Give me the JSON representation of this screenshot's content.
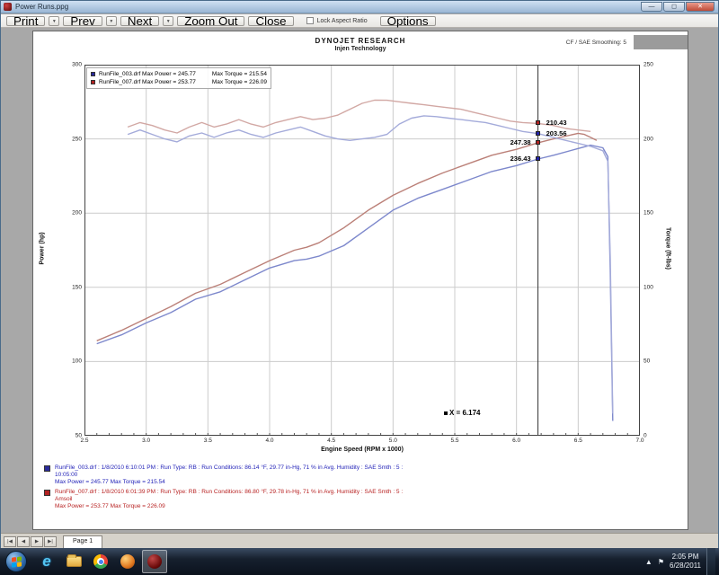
{
  "window": {
    "title": "Power Runs.ppg",
    "minimize": "—",
    "maximize": "◻",
    "close": "✕"
  },
  "toolbar": {
    "items": [
      {
        "label": "Print"
      },
      {
        "label": "Prev"
      },
      {
        "label": "Next"
      },
      {
        "label": "Zoom Out"
      },
      {
        "label": "Close"
      }
    ],
    "lock_aspect_label": "Lock Aspect Ratio",
    "options_label": "Options"
  },
  "page": {
    "header_title": "DYNOJET RESEARCH",
    "header_subtitle": "Injen Technology",
    "header_right": "CF / SAE   Smoothing: 5"
  },
  "legend": [
    {
      "color": "#2a2a9a",
      "left": "RunFile_003.drf Max Power = 245.77",
      "right": "Max Torque = 215.54"
    },
    {
      "color": "#b22222",
      "left": "RunFile_007.drf Max Power = 253.77",
      "right": "Max Torque = 226.09"
    }
  ],
  "cursor": {
    "label": "X = 6.174",
    "readouts": [
      {
        "label": "247.38",
        "value": 247.38,
        "axis": "left",
        "side": "left",
        "color": "#b22222"
      },
      {
        "label": "236.43",
        "value": 236.43,
        "axis": "left",
        "side": "left",
        "color": "#2222aa"
      },
      {
        "label": "210.43",
        "value": 210.43,
        "axis": "right",
        "side": "right",
        "color": "#b22222"
      },
      {
        "label": "203.56",
        "value": 203.56,
        "axis": "right",
        "side": "right",
        "color": "#2222aa"
      }
    ]
  },
  "chart_data": {
    "type": "line",
    "title": "DYNOJET RESEARCH — Injen Technology",
    "xlabel": "Engine Speed (RPM x 1000)",
    "ylabel_left": "Power (hp)",
    "ylabel_right": "Torque (ft-lbs)",
    "xlim": [
      2.5,
      7.0
    ],
    "x_tick_step": 0.5,
    "ylim_left": [
      50,
      300
    ],
    "ylim_right": [
      0,
      250
    ],
    "y_tick_step": 50,
    "grid": true,
    "cursor_x": 6.174,
    "series": [
      {
        "name": "RunFile_003.drf Power",
        "axis": "left",
        "color": "#7d88cc",
        "points": [
          [
            2.6,
            112
          ],
          [
            2.8,
            118
          ],
          [
            3.0,
            126
          ],
          [
            3.2,
            133
          ],
          [
            3.4,
            142
          ],
          [
            3.6,
            147
          ],
          [
            3.8,
            155
          ],
          [
            4.0,
            163
          ],
          [
            4.2,
            168
          ],
          [
            4.3,
            169
          ],
          [
            4.4,
            171
          ],
          [
            4.6,
            178
          ],
          [
            4.8,
            190
          ],
          [
            5.0,
            202
          ],
          [
            5.2,
            210
          ],
          [
            5.4,
            216
          ],
          [
            5.6,
            222
          ],
          [
            5.8,
            228
          ],
          [
            6.0,
            232
          ],
          [
            6.174,
            236.43
          ],
          [
            6.3,
            239
          ],
          [
            6.5,
            243.5
          ],
          [
            6.6,
            245.77
          ],
          [
            6.7,
            244
          ],
          [
            6.74,
            238
          ],
          [
            6.76,
            160
          ],
          [
            6.78,
            60
          ]
        ]
      },
      {
        "name": "RunFile_007.drf Power",
        "axis": "left",
        "color": "#bb8078",
        "points": [
          [
            2.6,
            114
          ],
          [
            2.8,
            121
          ],
          [
            3.0,
            129
          ],
          [
            3.2,
            137
          ],
          [
            3.4,
            146
          ],
          [
            3.6,
            152
          ],
          [
            3.8,
            160
          ],
          [
            4.0,
            168
          ],
          [
            4.2,
            175
          ],
          [
            4.3,
            177
          ],
          [
            4.4,
            180
          ],
          [
            4.6,
            190
          ],
          [
            4.8,
            202
          ],
          [
            5.0,
            212
          ],
          [
            5.2,
            220
          ],
          [
            5.4,
            227
          ],
          [
            5.6,
            233
          ],
          [
            5.8,
            239
          ],
          [
            6.0,
            243
          ],
          [
            6.174,
            247.38
          ],
          [
            6.3,
            250
          ],
          [
            6.5,
            253.77
          ],
          [
            6.55,
            253
          ],
          [
            6.6,
            251
          ],
          [
            6.65,
            249
          ]
        ]
      },
      {
        "name": "RunFile_003.drf Torque",
        "axis": "right",
        "color": "#a4abda",
        "points": [
          [
            2.85,
            203
          ],
          [
            2.95,
            206
          ],
          [
            3.05,
            203
          ],
          [
            3.15,
            200
          ],
          [
            3.25,
            198
          ],
          [
            3.35,
            202
          ],
          [
            3.45,
            204
          ],
          [
            3.55,
            201
          ],
          [
            3.65,
            204
          ],
          [
            3.75,
            206
          ],
          [
            3.85,
            203
          ],
          [
            3.95,
            201
          ],
          [
            4.05,
            204
          ],
          [
            4.15,
            206
          ],
          [
            4.25,
            208
          ],
          [
            4.35,
            205
          ],
          [
            4.45,
            202
          ],
          [
            4.55,
            200
          ],
          [
            4.65,
            199
          ],
          [
            4.75,
            200
          ],
          [
            4.85,
            201
          ],
          [
            4.95,
            203
          ],
          [
            5.05,
            210
          ],
          [
            5.15,
            214
          ],
          [
            5.25,
            215.54
          ],
          [
            5.35,
            215
          ],
          [
            5.45,
            214
          ],
          [
            5.55,
            213
          ],
          [
            5.65,
            212
          ],
          [
            5.75,
            211
          ],
          [
            5.85,
            209
          ],
          [
            5.95,
            207
          ],
          [
            6.05,
            205
          ],
          [
            6.174,
            203.56
          ],
          [
            6.3,
            201
          ],
          [
            6.4,
            199
          ],
          [
            6.5,
            197
          ],
          [
            6.6,
            195
          ],
          [
            6.7,
            192
          ],
          [
            6.74,
            185
          ],
          [
            6.76,
            120
          ],
          [
            6.78,
            15
          ]
        ]
      },
      {
        "name": "RunFile_007.drf Torque",
        "axis": "right",
        "color": "#d2a8a4",
        "points": [
          [
            2.85,
            208
          ],
          [
            2.95,
            211
          ],
          [
            3.05,
            209
          ],
          [
            3.15,
            206
          ],
          [
            3.25,
            204
          ],
          [
            3.35,
            208
          ],
          [
            3.45,
            211
          ],
          [
            3.55,
            208
          ],
          [
            3.65,
            210
          ],
          [
            3.75,
            213
          ],
          [
            3.85,
            210
          ],
          [
            3.95,
            208
          ],
          [
            4.05,
            211
          ],
          [
            4.15,
            213
          ],
          [
            4.25,
            215
          ],
          [
            4.35,
            213
          ],
          [
            4.45,
            214
          ],
          [
            4.55,
            216
          ],
          [
            4.65,
            220
          ],
          [
            4.75,
            224
          ],
          [
            4.85,
            226.09
          ],
          [
            4.95,
            226
          ],
          [
            5.05,
            225
          ],
          [
            5.15,
            224
          ],
          [
            5.25,
            223
          ],
          [
            5.35,
            222
          ],
          [
            5.45,
            221
          ],
          [
            5.55,
            220
          ],
          [
            5.65,
            218
          ],
          [
            5.75,
            216
          ],
          [
            5.85,
            214
          ],
          [
            5.95,
            212
          ],
          [
            6.05,
            211
          ],
          [
            6.174,
            210.43
          ],
          [
            6.3,
            209
          ],
          [
            6.4,
            207
          ],
          [
            6.5,
            206
          ],
          [
            6.6,
            205
          ]
        ]
      }
    ]
  },
  "run_notes": [
    {
      "color": "#2323b8",
      "line1": "RunFile_003.drf : 1/8/2010 6:10:01 PM : Run Type: RB : Run Conditions: 86.14 °F, 29.77 in-Hg, 71 % in Avg. Humidity : SAE Smth : 5 :",
      "line2": "10:05:00",
      "line3": "Max Power = 245.77  Max Torque = 215.54"
    },
    {
      "color": "#b82323",
      "line1": "RunFile_007.drf : 1/8/2010 6:01:39 PM : Run Type: RB : Run Conditions: 86.80 °F, 29.78 in-Hg, 71 % in Avg. Humidity : SAE Smth : 5 :",
      "line2": "Amsoil",
      "line3": "Max Power = 253.77  Max Torque = 226.09"
    }
  ],
  "tabbar": {
    "nav": [
      "|◀",
      "◀",
      "▶",
      "▶|"
    ],
    "page_label": "Page 1"
  },
  "taskbar": {
    "time": "2:05 PM",
    "date": "6/28/2011",
    "overflow_glyph": "▲",
    "flag_glyph": "⚑"
  }
}
